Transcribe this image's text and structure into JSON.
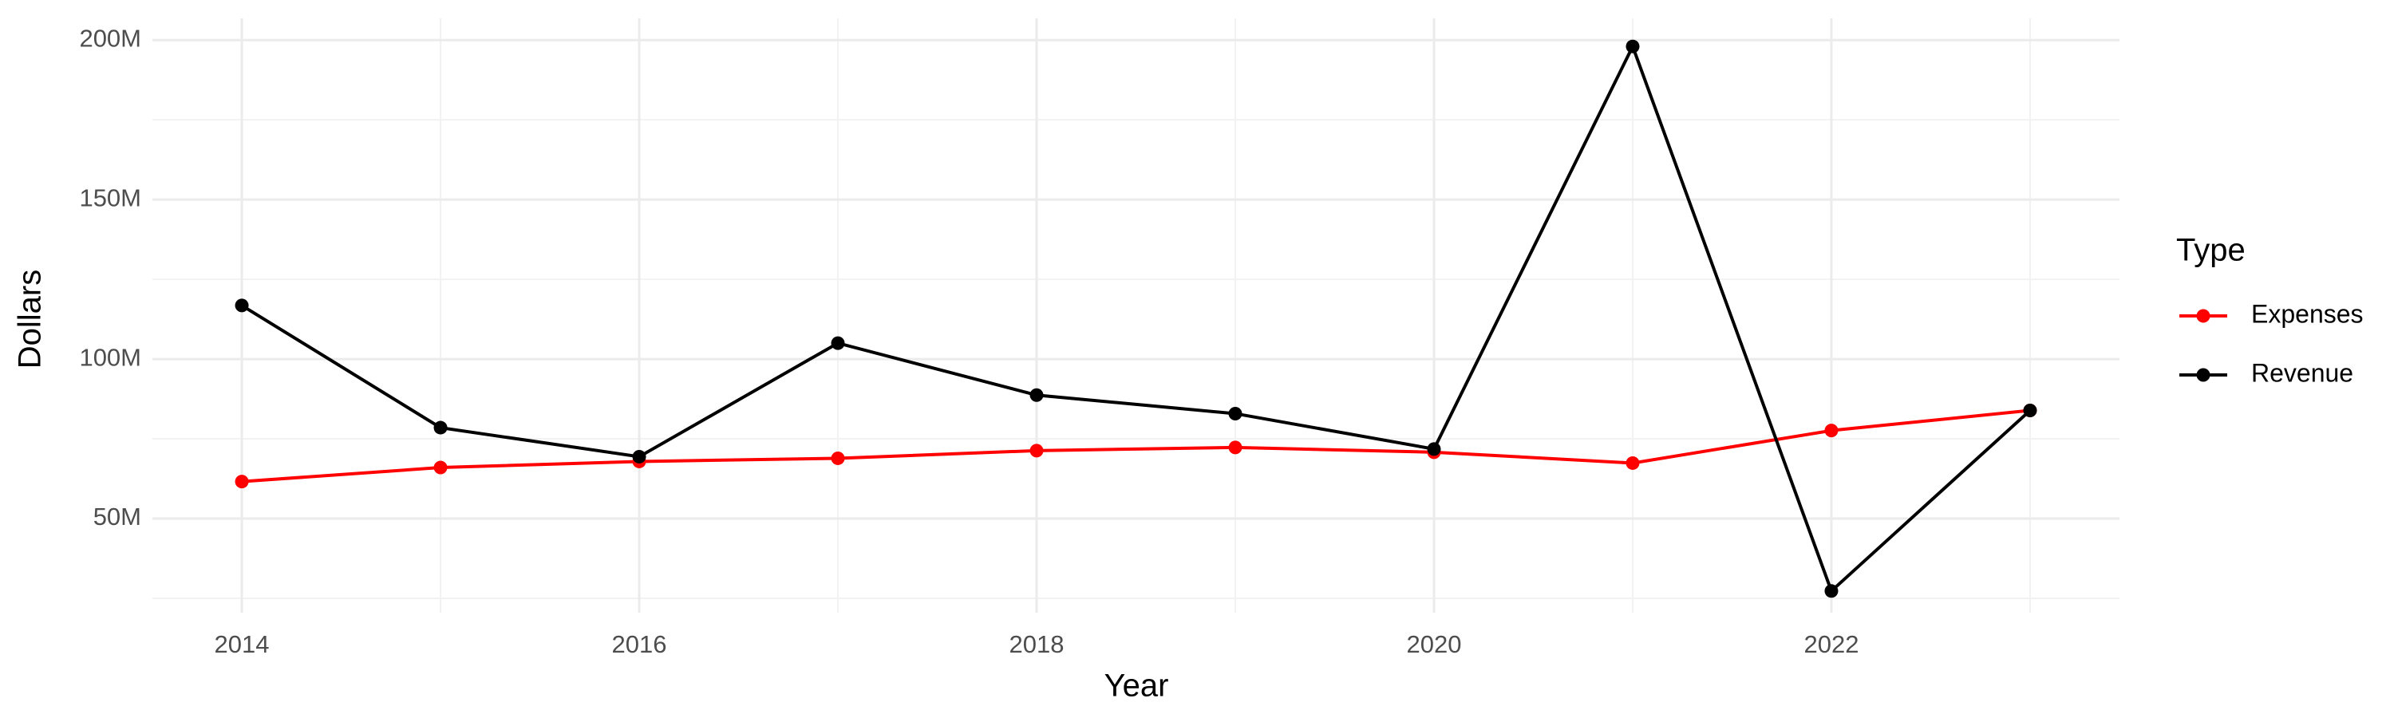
{
  "chart_data": {
    "type": "line",
    "x_label": "Year",
    "y_label": "Dollars",
    "legend_title": "Type",
    "x": [
      2014,
      2015,
      2016,
      2017,
      2018,
      2019,
      2020,
      2021,
      2022,
      2023
    ],
    "series": [
      {
        "name": "Expenses",
        "color": "#ff0000",
        "values": [
          61600000,
          66000000,
          67900000,
          68900000,
          71300000,
          72300000,
          70800000,
          67400000,
          77600000,
          83900000
        ]
      },
      {
        "name": "Revenue",
        "color": "#000000",
        "values": [
          116800000,
          78500000,
          69400000,
          105000000,
          88700000,
          82900000,
          71800000,
          198000000,
          27300000,
          83900000
        ]
      }
    ],
    "xlim": [
      2013.55,
      2023.45
    ],
    "xticks": [
      2014,
      2016,
      2018,
      2020,
      2022
    ],
    "x_minor_ticks": [
      2015,
      2017,
      2019,
      2021,
      2023
    ],
    "ylim": [
      20500000,
      206800000
    ],
    "yticks": [
      {
        "value": 50000000,
        "label": "50M"
      },
      {
        "value": 100000000,
        "label": "100M"
      },
      {
        "value": 150000000,
        "label": "150M"
      },
      {
        "value": 200000000,
        "label": "200M"
      }
    ],
    "y_minor_ticks": [
      25000000,
      75000000,
      125000000,
      175000000
    ],
    "grid": true,
    "legend_position": "right"
  }
}
